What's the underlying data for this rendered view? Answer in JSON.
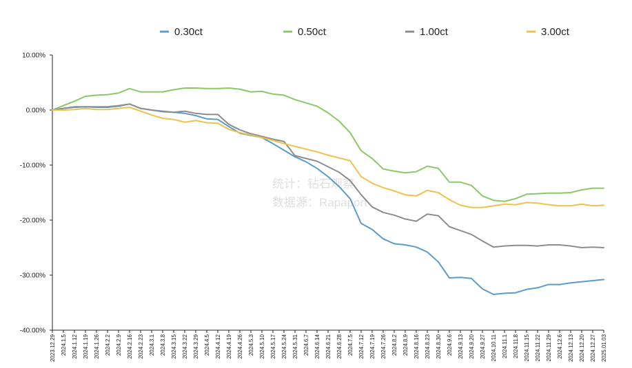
{
  "chart_data": {
    "type": "line",
    "title": "",
    "xlabel": "",
    "ylabel": "",
    "ylim": [
      -40,
      10
    ],
    "yticks": [
      10,
      0,
      -10,
      -20,
      -30,
      -40
    ],
    "ytick_labels": [
      "10.00%",
      "0.00%",
      "-10.00%",
      "-20.00%",
      "-30.00%",
      "-40.00%"
    ],
    "grid": false,
    "legend_position": "top",
    "watermark": [
      "统计：钻石观察",
      "数据源：Rapaport"
    ],
    "x": [
      "2023.12.29",
      "2024.1.5",
      "2024.1.12",
      "2024.1.19",
      "2024.1.26",
      "2024.2.2",
      "2024.2.9",
      "2024.2.16",
      "2024.2.23",
      "2024.3.1",
      "2024.3.8",
      "2024.3.15",
      "2024.3.22",
      "2024.3.29",
      "2024.4.5",
      "2024.4.12",
      "2024.4.19",
      "2024.4.26",
      "2024.5.3",
      "2024.5.10",
      "2024.5.17",
      "2024.5.24",
      "2024.5.31",
      "2024.6.7",
      "2024.6.14",
      "2024.6.21",
      "2024.6.28",
      "2024.7.5",
      "2024.7.12",
      "2024.7.19",
      "2024.7.26",
      "2024.8.2",
      "2024.8.9",
      "2024.8.16",
      "2024.8.23",
      "2024.8.30",
      "2024.9.6",
      "2024.9.13",
      "2024.9.20",
      "2024.9.27",
      "2024.10.11",
      "2024.11.1",
      "2024.11.8",
      "2024.11.15",
      "2024.11.22",
      "2024.11.29",
      "2024.12.6",
      "2024.12.13",
      "2024.12.20",
      "2024.12.27",
      "2025.01.03"
    ],
    "x_tick_labels": [
      "2023.12.29",
      "2024.1.5",
      "2024.1.12",
      "2024.1.19",
      "2024.1.26",
      "2024.2.2",
      "2024.2.9",
      "2024.2.16",
      "2024.2.23",
      "2024.3.1",
      "2024.3.8",
      "2024.3.15",
      "2024.3.22",
      "2024.3.29",
      "2024.4.5",
      "2024.4.12",
      "2024.4.19",
      "2024.4.26",
      "2024.5.3",
      "2024.5.10",
      "2024.5.17",
      "2024.5.24",
      "2024.5.31",
      "2024.6.7",
      "2024.6.14",
      "2024.6.21",
      "2024.6.28",
      "2024.7.5",
      "2024.7.12",
      "2024.7.19",
      "2024.7.26",
      "2024.8.2",
      "2024.8.9",
      "2024.8.16",
      "2024.8.23",
      "2024.8.30",
      "2024.9.6",
      "2024.9.13",
      "2024.9.20",
      "2024.9.27",
      "2024.10.11",
      "2024.11.1",
      "2024.11.8",
      "2024.11.15",
      "2024.11.22",
      "2024.11.29",
      "2024.12.6",
      "2024.12.13",
      "2024.12.20",
      "2024.12.27",
      "2025.01.03"
    ],
    "series": [
      {
        "name": "0.30ct",
        "color": "#5b9bc8",
        "values": [
          0.0,
          0.3,
          0.5,
          0.6,
          0.5,
          0.5,
          0.7,
          1.1,
          0.3,
          0.0,
          -0.2,
          -0.4,
          -0.6,
          -1.0,
          -1.6,
          -1.7,
          -3.0,
          -4.2,
          -4.6,
          -5.0,
          -6.1,
          -7.3,
          -8.5,
          -9.4,
          -10.6,
          -12.1,
          -13.9,
          -16.1,
          -20.6,
          -21.7,
          -23.4,
          -24.3,
          -24.5,
          -24.9,
          -25.8,
          -27.6,
          -30.5,
          -30.4,
          -30.6,
          -32.5,
          -33.5,
          -33.3,
          -33.2,
          -32.6,
          -32.3,
          -31.7,
          -31.7,
          -31.4,
          -31.2,
          -31.0,
          -30.8
        ]
      },
      {
        "name": "0.50ct",
        "color": "#8ac865",
        "values": [
          0.0,
          0.8,
          1.6,
          2.5,
          2.7,
          2.8,
          3.1,
          3.9,
          3.3,
          3.3,
          3.3,
          3.7,
          4.0,
          4.0,
          3.9,
          3.9,
          4.0,
          3.8,
          3.3,
          3.4,
          2.9,
          2.7,
          1.9,
          1.3,
          0.7,
          -0.5,
          -2.0,
          -4.1,
          -7.4,
          -8.8,
          -10.7,
          -11.1,
          -11.4,
          -11.2,
          -10.2,
          -10.6,
          -13.1,
          -13.1,
          -13.7,
          -15.6,
          -16.4,
          -16.6,
          -16.1,
          -15.3,
          -15.2,
          -15.1,
          -15.1,
          -15.0,
          -14.5,
          -14.2,
          -14.2
        ]
      },
      {
        "name": "1.00ct",
        "color": "#8c8c8c",
        "values": [
          0.0,
          0.3,
          0.6,
          0.6,
          0.6,
          0.6,
          0.8,
          1.1,
          0.3,
          0.0,
          -0.3,
          -0.4,
          -0.2,
          -0.6,
          -0.8,
          -0.8,
          -2.6,
          -3.6,
          -4.3,
          -4.8,
          -5.3,
          -5.7,
          -8.3,
          -8.8,
          -9.3,
          -10.3,
          -11.3,
          -12.8,
          -15.4,
          -17.6,
          -18.6,
          -19.1,
          -19.8,
          -20.2,
          -18.9,
          -19.2,
          -21.2,
          -21.9,
          -22.6,
          -23.8,
          -24.9,
          -24.7,
          -24.6,
          -24.6,
          -24.7,
          -24.5,
          -24.5,
          -24.7,
          -25.0,
          -24.9,
          -25.0
        ]
      },
      {
        "name": "3.00ct",
        "color": "#eec24a",
        "values": [
          0.0,
          0.0,
          0.1,
          0.3,
          0.1,
          0.1,
          0.3,
          0.5,
          -0.2,
          -0.9,
          -1.5,
          -1.7,
          -2.2,
          -1.9,
          -2.3,
          -2.4,
          -3.5,
          -4.1,
          -4.5,
          -5.0,
          -5.5,
          -6.1,
          -6.6,
          -7.1,
          -7.6,
          -8.2,
          -8.7,
          -9.2,
          -12.1,
          -13.3,
          -14.1,
          -14.7,
          -15.4,
          -15.6,
          -14.6,
          -15.0,
          -16.3,
          -17.3,
          -17.7,
          -17.7,
          -17.4,
          -17.1,
          -17.2,
          -16.8,
          -16.9,
          -17.2,
          -17.4,
          -17.4,
          -17.1,
          -17.4,
          -17.3
        ]
      }
    ]
  }
}
